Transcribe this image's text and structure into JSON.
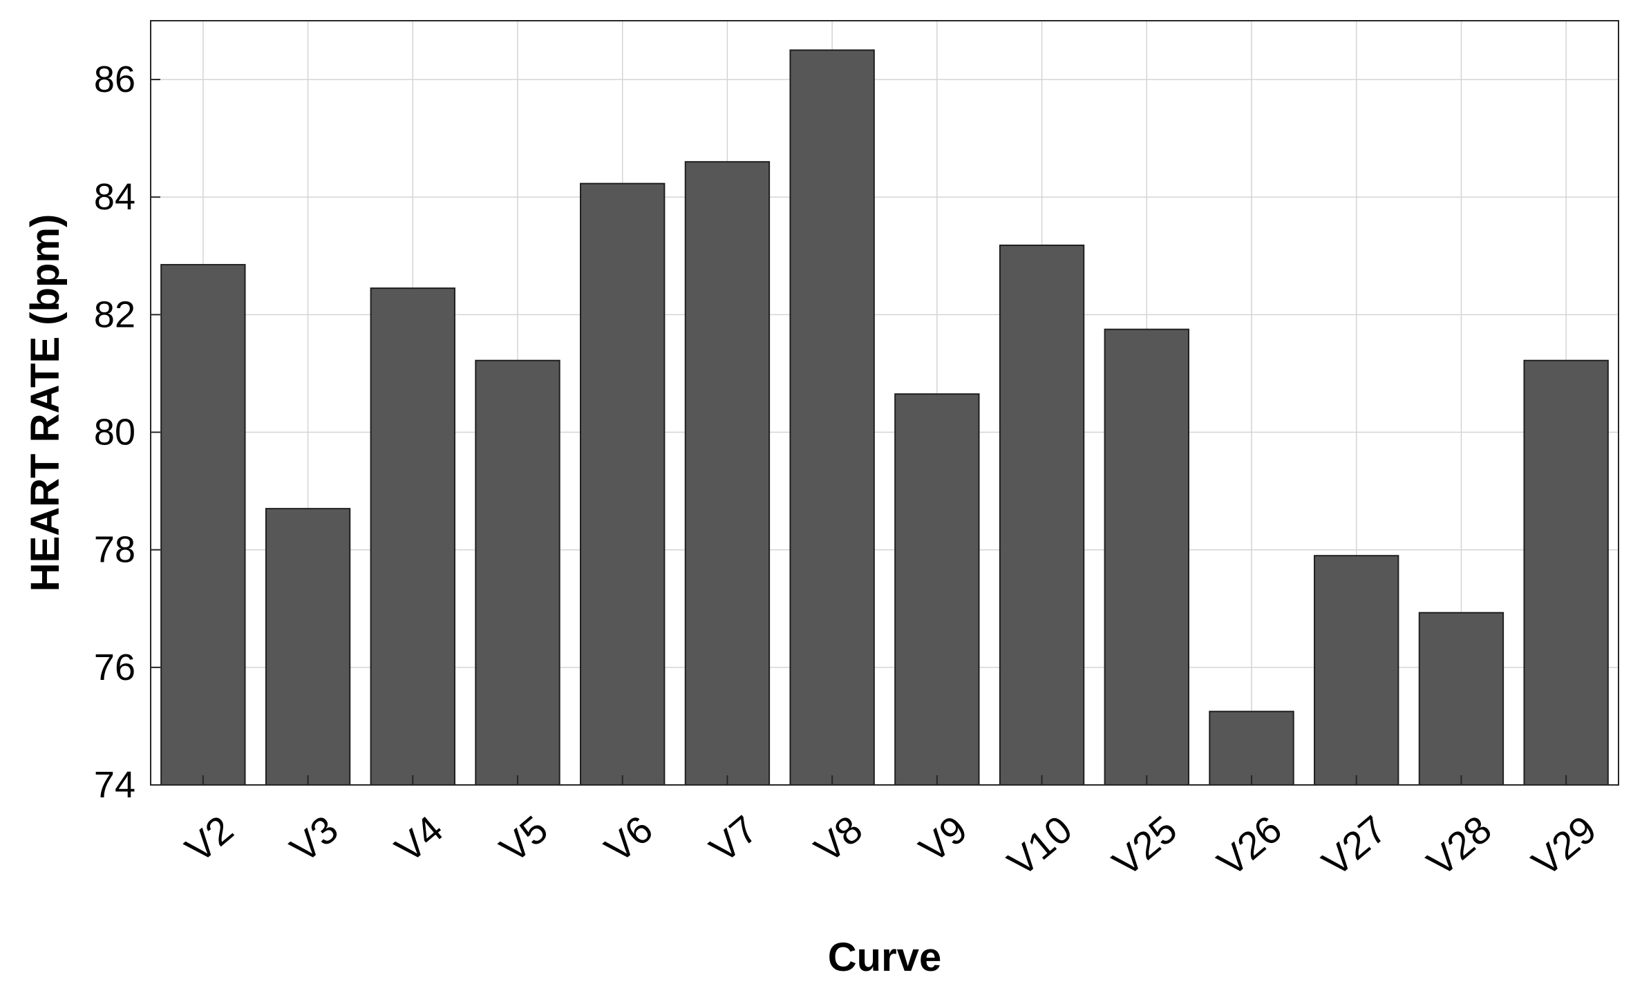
{
  "chart_data": {
    "type": "bar",
    "title": "",
    "xlabel": "Curve",
    "ylabel": "HEART RATE (bpm)",
    "categories": [
      "V2",
      "V3",
      "V4",
      "V5",
      "V6",
      "V7",
      "V8",
      "V9",
      "V10",
      "V25",
      "V26",
      "V27",
      "V28",
      "V29"
    ],
    "values": [
      82.85,
      78.7,
      82.45,
      81.22,
      84.23,
      84.6,
      86.5,
      80.65,
      83.18,
      81.75,
      75.25,
      77.9,
      76.93,
      81.22
    ],
    "ylim": [
      74,
      87
    ],
    "yticks": [
      74,
      76,
      78,
      80,
      82,
      84,
      86
    ],
    "grid": true,
    "colors": {
      "bar": "#575757",
      "bar_edge": "#1f1f1f",
      "grid": "#d4d4d4",
      "axis": "#262626",
      "text": "#000000"
    }
  }
}
